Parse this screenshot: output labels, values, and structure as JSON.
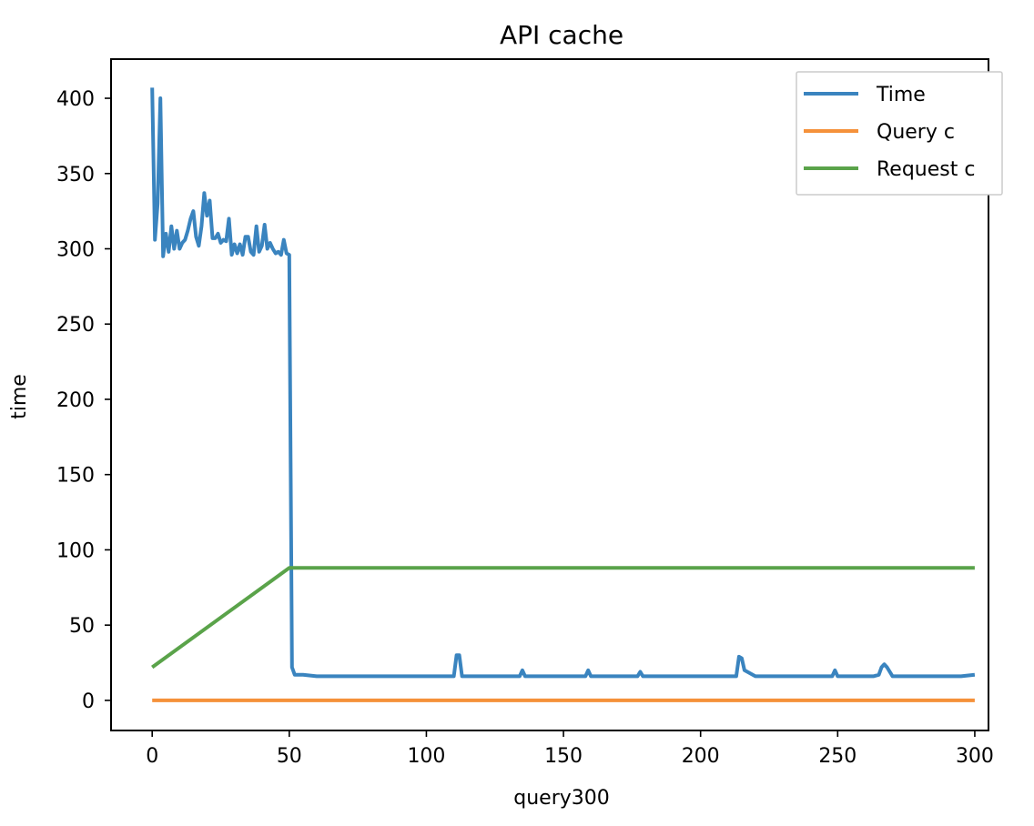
{
  "chart_data": {
    "type": "line",
    "title": "API cache",
    "xlabel": "query300",
    "ylabel": "time",
    "xlim": [
      -15,
      305
    ],
    "ylim": [
      -20,
      426
    ],
    "xticks": [
      0,
      50,
      100,
      150,
      200,
      250,
      300
    ],
    "yticks": [
      0,
      50,
      100,
      150,
      200,
      250,
      300,
      350,
      400
    ],
    "grid": false,
    "legend_position": "top-right",
    "series": [
      {
        "name": "Time",
        "color": "#3a84bf",
        "x": [
          0,
          1,
          2,
          3,
          4,
          5,
          6,
          7,
          8,
          9,
          10,
          11,
          12,
          13,
          14,
          15,
          16,
          17,
          18,
          19,
          20,
          21,
          22,
          23,
          24,
          25,
          26,
          27,
          28,
          29,
          30,
          31,
          32,
          33,
          34,
          35,
          36,
          37,
          38,
          39,
          40,
          41,
          42,
          43,
          44,
          45,
          46,
          47,
          48,
          49,
          50,
          51,
          52,
          55,
          60,
          65,
          70,
          75,
          80,
          85,
          90,
          95,
          100,
          105,
          110,
          111,
          112,
          113,
          114,
          120,
          125,
          130,
          134,
          135,
          136,
          140,
          145,
          150,
          155,
          158,
          159,
          160,
          165,
          170,
          175,
          177,
          178,
          179,
          185,
          190,
          195,
          200,
          205,
          210,
          213,
          214,
          215,
          216,
          220,
          225,
          230,
          235,
          240,
          242,
          245,
          248,
          249,
          250,
          255,
          260,
          263,
          265,
          266,
          267,
          268,
          270,
          275,
          280,
          285,
          290,
          295,
          300
        ],
        "y": [
          407,
          306,
          330,
          400,
          295,
          310,
          298,
          315,
          300,
          312,
          300,
          304,
          306,
          312,
          320,
          325,
          308,
          302,
          315,
          337,
          322,
          332,
          307,
          307,
          310,
          304,
          306,
          305,
          320,
          296,
          303,
          297,
          303,
          296,
          308,
          308,
          298,
          296,
          315,
          298,
          302,
          316,
          300,
          304,
          300,
          297,
          298,
          296,
          306,
          297,
          296,
          22,
          17,
          17,
          16,
          16,
          16,
          16,
          16,
          16,
          16,
          16,
          16,
          16,
          16,
          30,
          30,
          16,
          16,
          16,
          16,
          16,
          16,
          20,
          16,
          16,
          16,
          16,
          16,
          16,
          20,
          16,
          16,
          16,
          16,
          16,
          19,
          16,
          16,
          16,
          16,
          16,
          16,
          16,
          16,
          29,
          28,
          20,
          16,
          16,
          16,
          16,
          16,
          16,
          16,
          16,
          20,
          16,
          16,
          16,
          16,
          17,
          22,
          24,
          22,
          16,
          16,
          16,
          16,
          16,
          16,
          17
        ]
      },
      {
        "name": "Query c",
        "color": "#f5913a",
        "x": [
          0,
          300
        ],
        "y": [
          0,
          0
        ]
      },
      {
        "name": "Request c",
        "color": "#5aa34a",
        "x": [
          0,
          50,
          300
        ],
        "y": [
          22,
          88,
          88
        ]
      }
    ]
  }
}
